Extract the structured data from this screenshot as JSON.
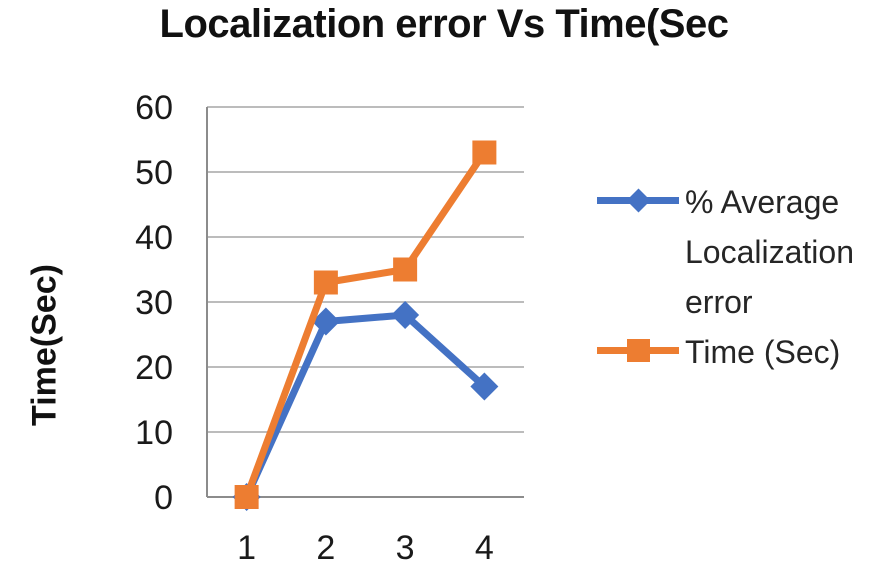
{
  "title": "Localization error Vs Time(Sec",
  "y_axis_label": "Time(Sec)",
  "colors": {
    "gridline": "#a6a6a6",
    "axis": "#8c8c8c",
    "tick_text": "#1a1a1a",
    "title_text": "#111111",
    "blue_series": "#4472c4",
    "orange_series": "#ed7d31"
  },
  "chart_data": {
    "type": "line",
    "title": "Localization error Vs Time(Sec",
    "xlabel": "",
    "ylabel": "Time(Sec)",
    "categories": [
      "1",
      "2",
      "3",
      "4"
    ],
    "yticks": [
      0,
      10,
      20,
      30,
      40,
      50,
      60
    ],
    "ylim": [
      0,
      60
    ],
    "grid": true,
    "legend_position": "right",
    "series": [
      {
        "name": "% Average Localization error",
        "color": "#4472c4",
        "marker": "diamond",
        "values": [
          0,
          27,
          28,
          17
        ]
      },
      {
        "name": "Time (Sec)",
        "color": "#ed7d31",
        "marker": "square",
        "values": [
          0,
          33,
          35,
          53
        ]
      }
    ]
  }
}
